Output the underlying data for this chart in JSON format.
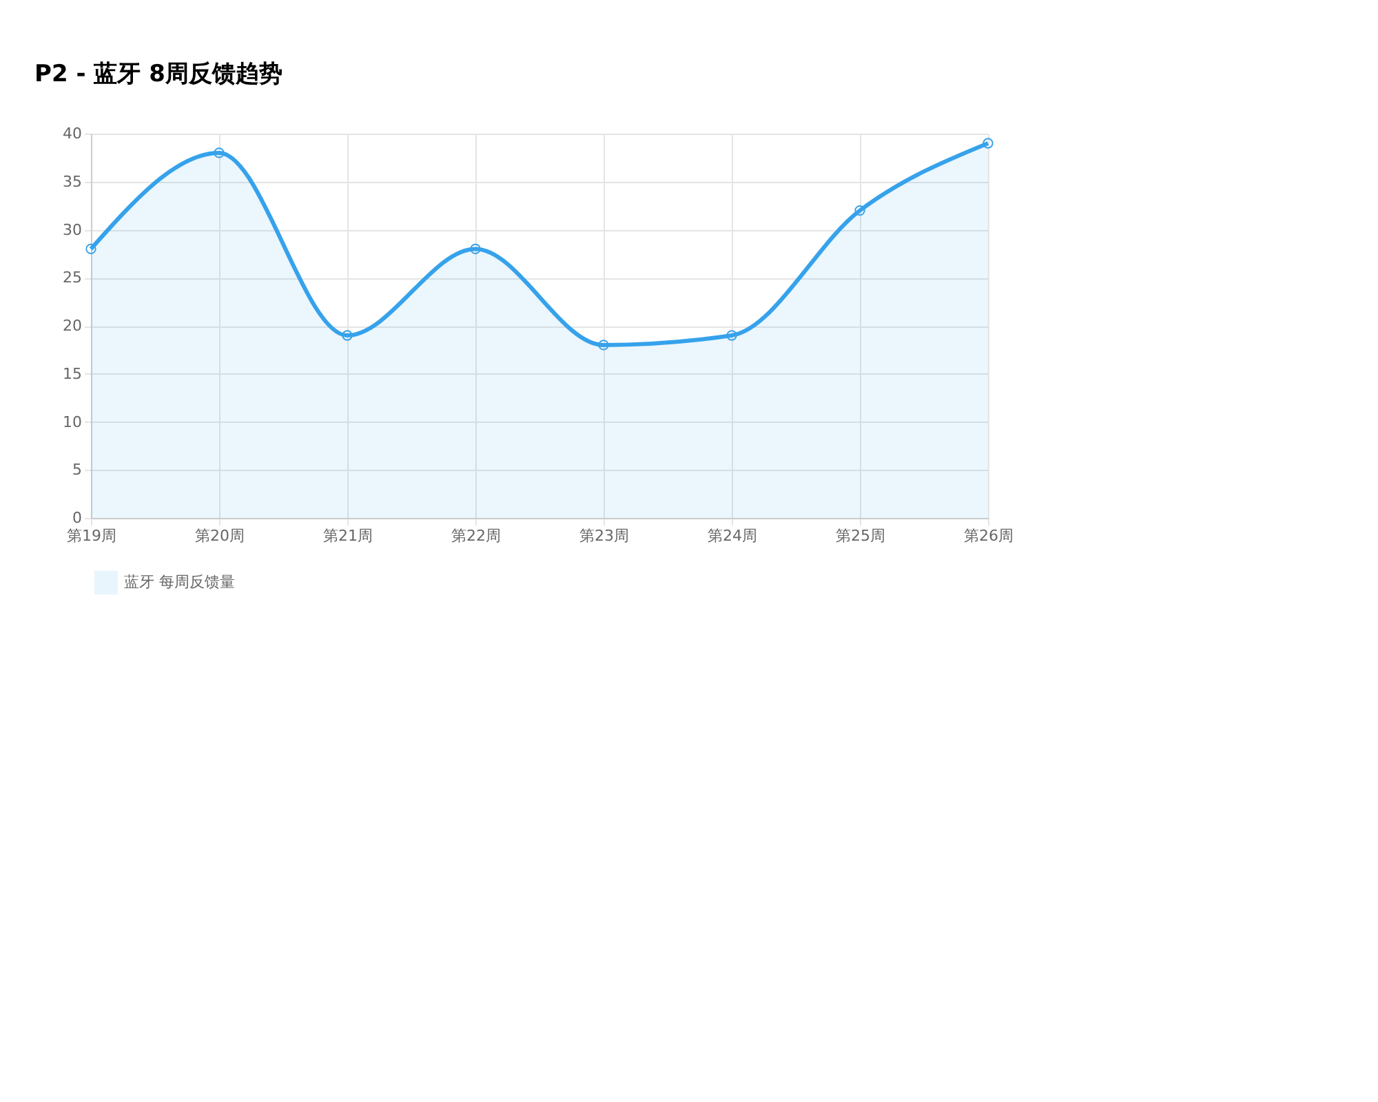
{
  "chart_data": {
    "type": "area",
    "title": "P2 - 蓝牙 8周反馈趋势",
    "categories": [
      "第19周",
      "第20周",
      "第21周",
      "第22周",
      "第23周",
      "第24周",
      "第25周",
      "第26周"
    ],
    "series": [
      {
        "name": "蓝牙 每周反馈量",
        "color": "#36a2eb",
        "values": [
          28,
          38,
          19,
          28,
          18,
          19,
          32,
          39
        ]
      }
    ],
    "ylim": [
      0,
      40
    ],
    "yticks": [
      0,
      5,
      10,
      15,
      20,
      25,
      30,
      35,
      40
    ],
    "grid": true,
    "legend": "bottom",
    "marker": "circle",
    "line_style": "solid"
  }
}
